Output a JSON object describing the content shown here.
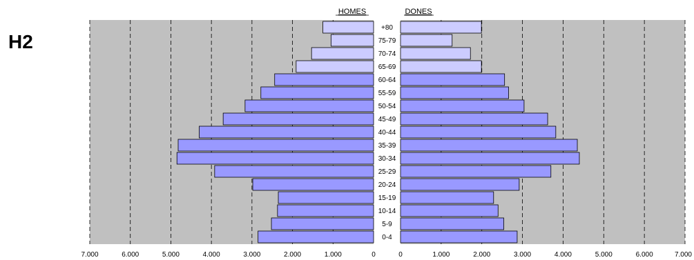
{
  "page_label": "H2",
  "chart_data": {
    "type": "bar",
    "orientation": "horizontal",
    "layout": "population-pyramid",
    "categories": [
      "+80",
      "75-79",
      "70-74",
      "65-69",
      "60-64",
      "55-59",
      "50-54",
      "45-49",
      "40-44",
      "35-39",
      "30-34",
      "25-29",
      "20-24",
      "15-19",
      "10-14",
      "5-9",
      "0-4"
    ],
    "series": [
      {
        "name": "HOMES",
        "side": "left",
        "values": [
          1250,
          1050,
          1530,
          1910,
          2440,
          2780,
          3170,
          3710,
          4300,
          4820,
          4850,
          3920,
          2980,
          2350,
          2370,
          2520,
          2850
        ]
      },
      {
        "name": "DONES",
        "side": "right",
        "values": [
          1990,
          1270,
          1720,
          1990,
          2560,
          2660,
          3040,
          3620,
          3820,
          4350,
          4400,
          3700,
          2920,
          2290,
          2400,
          2540,
          2870
        ]
      }
    ],
    "xlim": [
      0,
      7000
    ],
    "x_ticks_left": [
      "7.000",
      "6.000",
      "5.000",
      "4.000",
      "3.000",
      "2.000",
      "1.000",
      "0"
    ],
    "x_ticks_right": [
      "0",
      "1.000",
      "2.000",
      "3.000",
      "4.000",
      "5.000",
      "6.000",
      "7.000"
    ],
    "grid": true,
    "colors": {
      "plot_background": "#c0c0c0",
      "bar_old": "#ccccff",
      "bar_young": "#9999ff",
      "bar_border": "#000000",
      "gridline": "#000000",
      "center_background": "#ffffff"
    }
  }
}
